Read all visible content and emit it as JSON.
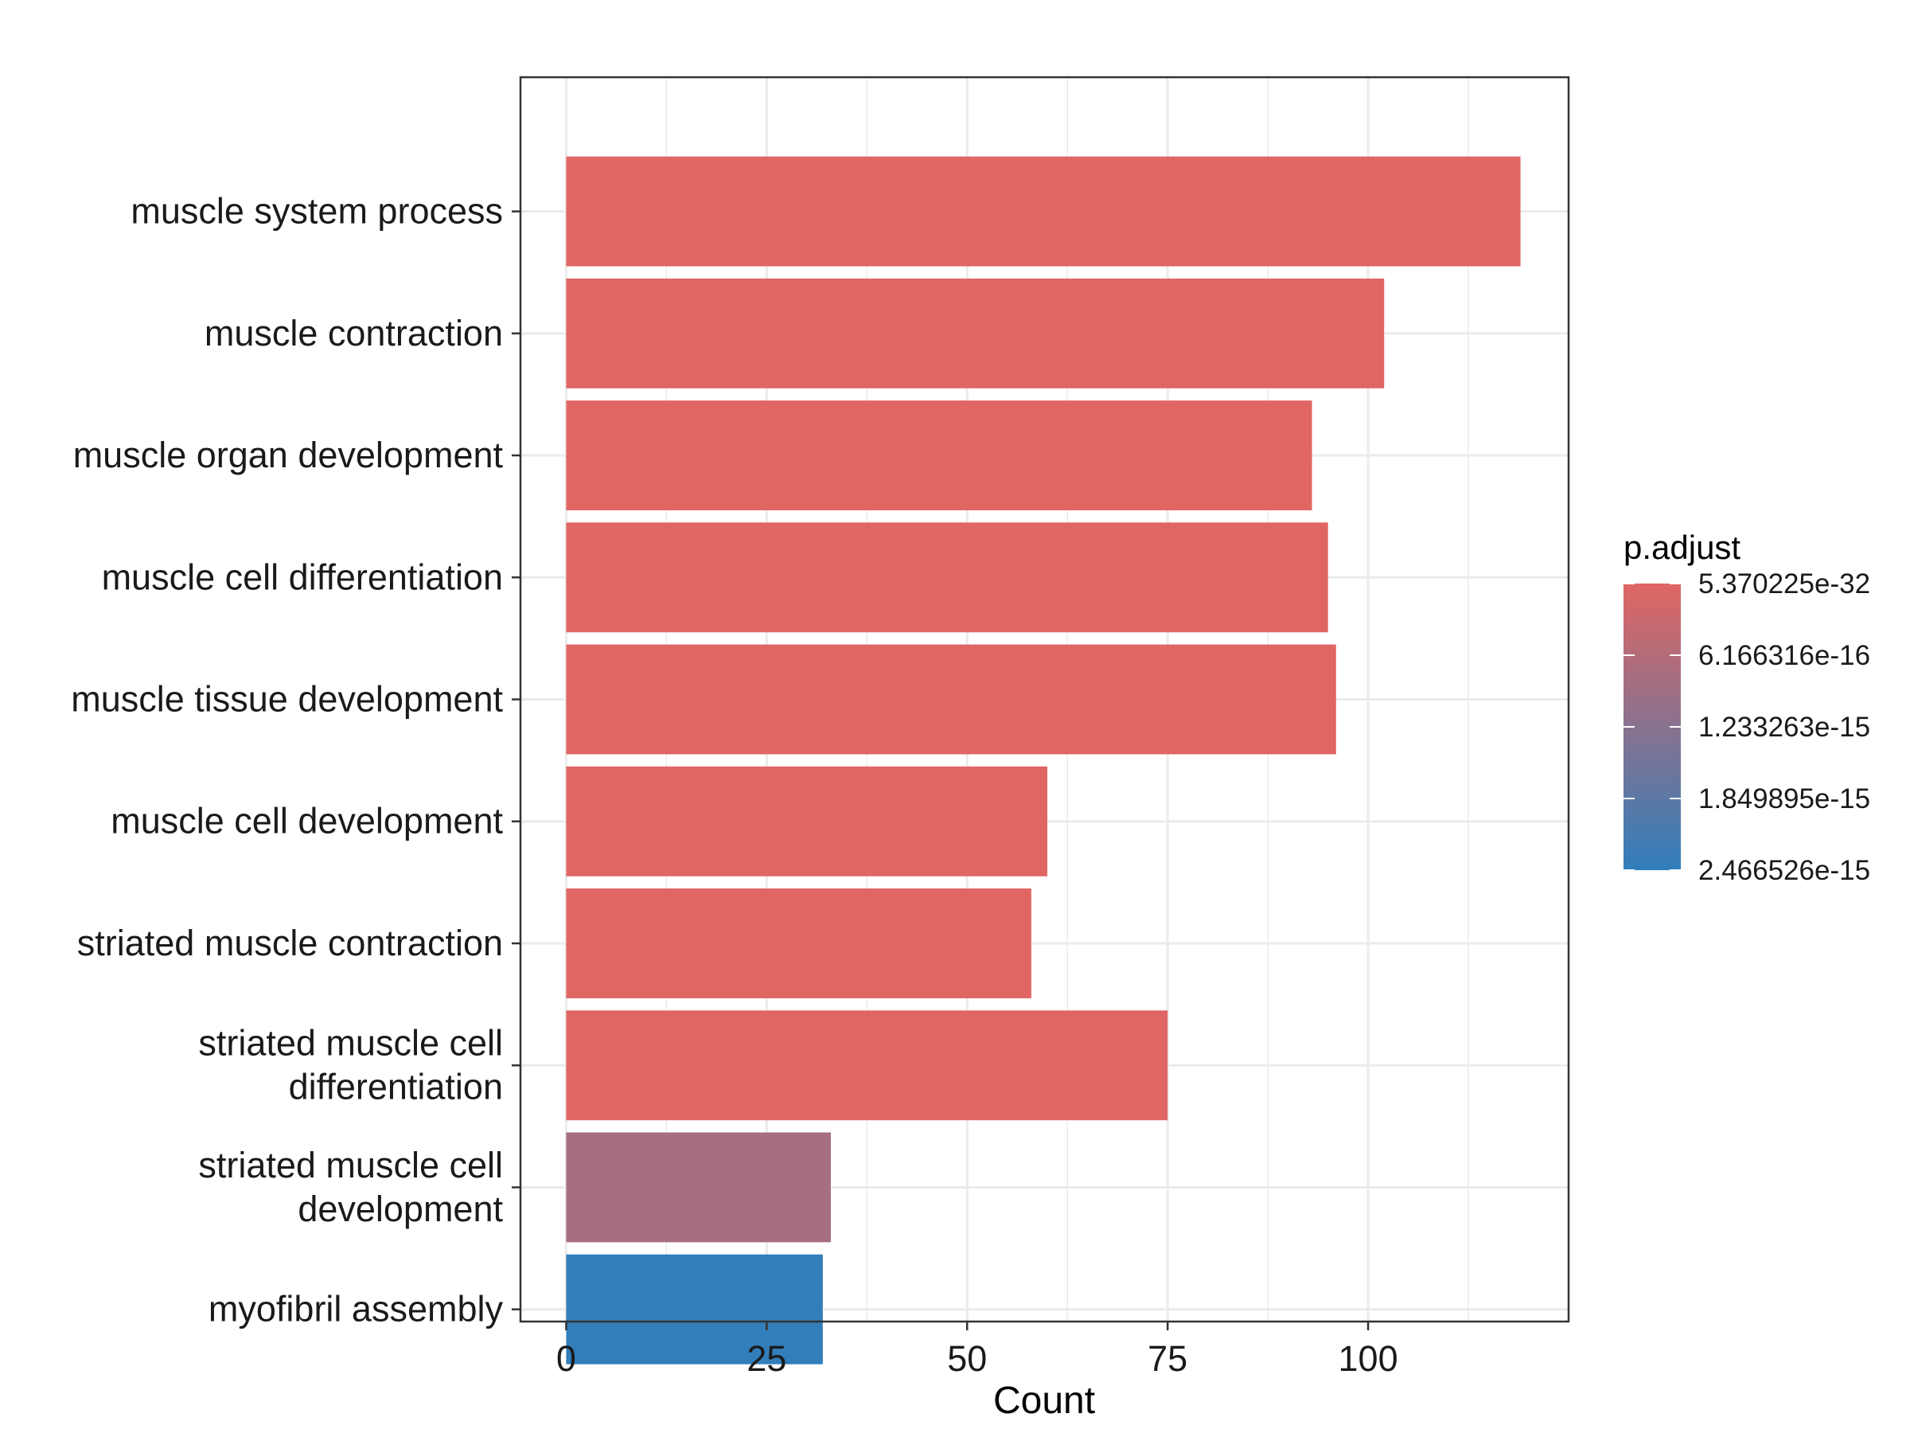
{
  "chart_data": {
    "type": "bar",
    "orientation": "horizontal",
    "categories": [
      "muscle system process",
      "muscle contraction",
      "muscle organ development",
      "muscle cell differentiation",
      "muscle tissue development",
      "muscle cell development",
      "striated muscle contraction",
      "striated muscle cell\ndifferentiation",
      "striated muscle cell\ndevelopment",
      "myofibril assembly"
    ],
    "values": [
      119,
      102,
      93,
      95,
      96,
      60,
      58,
      75,
      33,
      32
    ],
    "p_adjust": [
      1e-31,
      1e-30,
      1e-29,
      1e-28,
      1e-27,
      1e-20,
      1e-20,
      1e-18,
      8e-16,
      2.466526e-15
    ],
    "xlabel": "Count",
    "ylabel": "",
    "xlim": [
      -5.7,
      125
    ],
    "x_ticks": [
      0,
      25,
      50,
      75,
      100
    ],
    "x_tick_labels": [
      "0",
      "25",
      "50",
      "75",
      "100"
    ],
    "grid": true,
    "legend": {
      "title": "p.adjust",
      "placement": "right",
      "labels": [
        "5.370225e-32",
        "6.166316e-16",
        "1.233263e-15",
        "1.849895e-15",
        "2.466526e-15"
      ],
      "breaks": [
        5.370225e-32,
        6.166316e-16,
        1.233263e-15,
        1.849895e-15,
        2.466526e-15
      ],
      "range": [
        5.370225e-32,
        2.466526e-15
      ],
      "color_low": "#E06663",
      "color_high": "#317EBB"
    }
  }
}
